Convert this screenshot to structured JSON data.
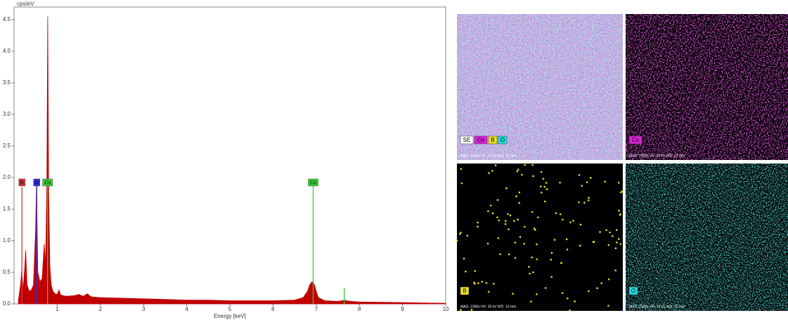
{
  "chart_data": {
    "type": "area",
    "y_label": "cps/eV",
    "x_label": "Energy [keV]",
    "color": "#c00000",
    "xlim": [
      0,
      10
    ],
    "ylim": [
      0,
      4.7
    ],
    "xticks": [
      1,
      2,
      3,
      4,
      5,
      6,
      7,
      8,
      9,
      10
    ],
    "yticks": [
      {
        "value": 0,
        "label": "0.0"
      },
      {
        "value": 0.5,
        "label": "0.5"
      },
      {
        "value": 1,
        "label": "1.0"
      },
      {
        "value": 1.5,
        "label": "1.5"
      },
      {
        "value": 2,
        "label": "2.0"
      },
      {
        "value": 2.5,
        "label": "2.5"
      },
      {
        "value": 3,
        "label": "3.0"
      },
      {
        "value": 3.5,
        "label": "3.5"
      },
      {
        "value": 4,
        "label": "4.0"
      },
      {
        "value": 4.5,
        "label": "4.5"
      }
    ],
    "x": [
      0.1,
      0.15,
      0.18,
      0.21,
      0.25,
      0.27,
      0.3,
      0.35,
      0.4,
      0.45,
      0.5,
      0.52,
      0.55,
      0.6,
      0.65,
      0.7,
      0.73,
      0.76,
      0.78,
      0.8,
      0.83,
      0.86,
      0.9,
      0.95,
      1.0,
      1.04,
      1.08,
      1.2,
      1.4,
      1.5,
      1.6,
      1.7,
      1.75,
      1.8,
      2.0,
      2.5,
      3.0,
      3.5,
      4.0,
      4.5,
      5.0,
      5.5,
      6.0,
      6.5,
      6.7,
      6.8,
      6.85,
      6.9,
      6.93,
      6.96,
      7.0,
      7.05,
      7.2,
      7.5,
      7.6,
      7.65,
      7.7,
      7.8,
      8.0,
      9.0,
      10.0
    ],
    "values": [
      0.05,
      0.3,
      0.55,
      0.2,
      0.6,
      0.85,
      0.3,
      0.2,
      0.22,
      0.3,
      1.2,
      1.95,
      0.5,
      0.35,
      0.4,
      0.95,
      0.6,
      1.9,
      4.55,
      1.9,
      0.6,
      0.3,
      0.2,
      0.16,
      0.15,
      0.22,
      0.14,
      0.12,
      0.13,
      0.15,
      0.12,
      0.16,
      0.13,
      0.11,
      0.1,
      0.09,
      0.08,
      0.07,
      0.06,
      0.06,
      0.05,
      0.05,
      0.05,
      0.06,
      0.1,
      0.2,
      0.3,
      0.35,
      0.34,
      0.3,
      0.2,
      0.1,
      0.05,
      0.04,
      0.05,
      0.06,
      0.05,
      0.04,
      0.03,
      0.02,
      0.01
    ],
    "markers": [
      {
        "label": "B",
        "x": 0.183,
        "height": 1.85,
        "color": "#e03030"
      },
      {
        "label": "O",
        "x": 0.525,
        "height": 1.95,
        "color": "#3030e0"
      },
      {
        "label": "Co",
        "x": 0.776,
        "height": 1.95,
        "color": "#30d030"
      },
      {
        "label": "Co",
        "x": 6.93,
        "height": 1.88,
        "color": "#30d030"
      },
      {
        "label": null,
        "x": 7.65,
        "height": 0.25,
        "color": "#30d030"
      }
    ]
  },
  "maps": {
    "panels": [
      {
        "labels": [
          {
            "text": "SE",
            "color": "#ffffff"
          },
          {
            "text": "Co",
            "color": "#e020e0"
          },
          {
            "text": "B",
            "color": "#f0e020"
          },
          {
            "text": "O",
            "color": "#20e0e0"
          }
        ],
        "info": "MAG: 2300x  HV: 20 kV  WD: 10 mm"
      },
      {
        "labels": [
          {
            "text": "Co",
            "color": "#e020e0"
          }
        ],
        "info": "MAG: 2300x  HV: 20 kV  WD: 10 mm"
      },
      {
        "labels": [
          {
            "text": "B",
            "color": "#f0e020"
          }
        ],
        "info": "MAG: 2300x  HV: 20 kV  WD: 10 mm"
      },
      {
        "labels": [
          {
            "text": "O",
            "color": "#20e0e0"
          }
        ],
        "info": "MAG: 2300x  HV: 20 kV  WD: 10 mm"
      }
    ]
  }
}
